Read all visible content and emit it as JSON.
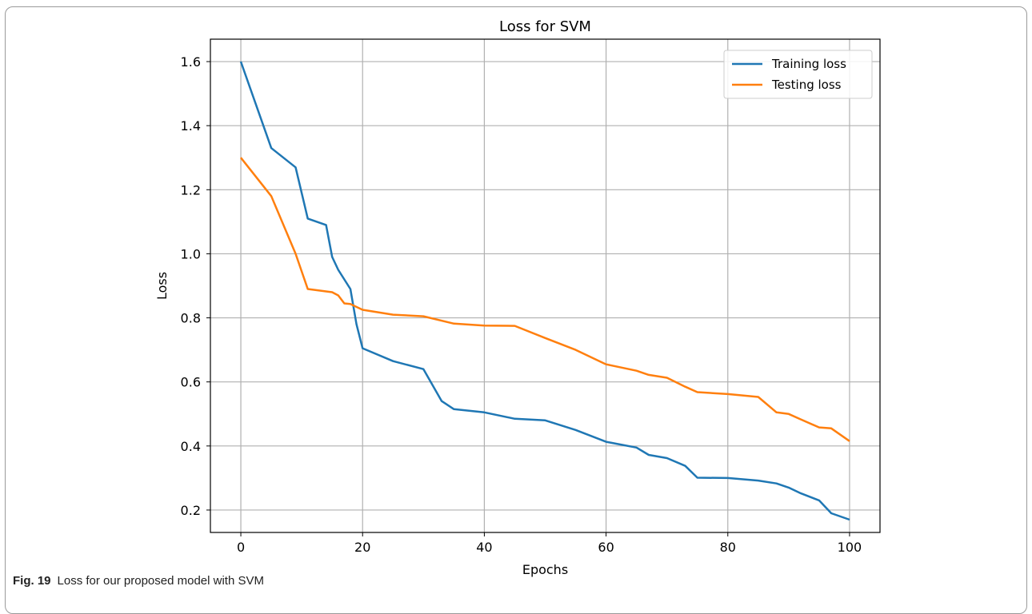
{
  "figure": {
    "caption_label": "Fig. 19",
    "caption_text": "Loss for our proposed model with SVM"
  },
  "chart_data": {
    "type": "line",
    "title": "Loss for SVM",
    "xlabel": "Epochs",
    "ylabel": "Loss",
    "xlim": [
      -5,
      105
    ],
    "ylim": [
      0.13,
      1.67
    ],
    "xticks": [
      0,
      20,
      40,
      60,
      80,
      100
    ],
    "yticks": [
      0.2,
      0.4,
      0.6,
      0.8,
      1.0,
      1.2,
      1.4,
      1.6
    ],
    "grid": true,
    "legend_position": "top-right",
    "series": [
      {
        "name": "Training loss",
        "color": "#1f77b4",
        "x": [
          0,
          5,
          9,
          11,
          14,
          15,
          16,
          18,
          19,
          20,
          25,
          30,
          33,
          35,
          40,
          45,
          50,
          55,
          60,
          65,
          67,
          70,
          73,
          75,
          80,
          85,
          88,
          90,
          92,
          95,
          97,
          100
        ],
        "y": [
          1.6,
          1.33,
          1.27,
          1.11,
          1.09,
          0.99,
          0.95,
          0.89,
          0.78,
          0.705,
          0.665,
          0.64,
          0.54,
          0.515,
          0.505,
          0.485,
          0.48,
          0.45,
          0.413,
          0.395,
          0.372,
          0.362,
          0.338,
          0.301,
          0.3,
          0.292,
          0.283,
          0.27,
          0.252,
          0.23,
          0.19,
          0.17
        ]
      },
      {
        "name": "Testing loss",
        "color": "#ff7f0e",
        "x": [
          0,
          5,
          9,
          11,
          15,
          16,
          17,
          18,
          20,
          25,
          30,
          35,
          40,
          45,
          50,
          55,
          60,
          65,
          67,
          70,
          73,
          75,
          80,
          85,
          88,
          90,
          92,
          95,
          97,
          100
        ],
        "y": [
          1.3,
          1.18,
          1.0,
          0.89,
          0.88,
          0.87,
          0.845,
          0.843,
          0.825,
          0.81,
          0.805,
          0.782,
          0.776,
          0.775,
          0.737,
          0.7,
          0.655,
          0.635,
          0.622,
          0.613,
          0.585,
          0.568,
          0.562,
          0.553,
          0.505,
          0.5,
          0.483,
          0.458,
          0.455,
          0.415
        ]
      }
    ]
  }
}
